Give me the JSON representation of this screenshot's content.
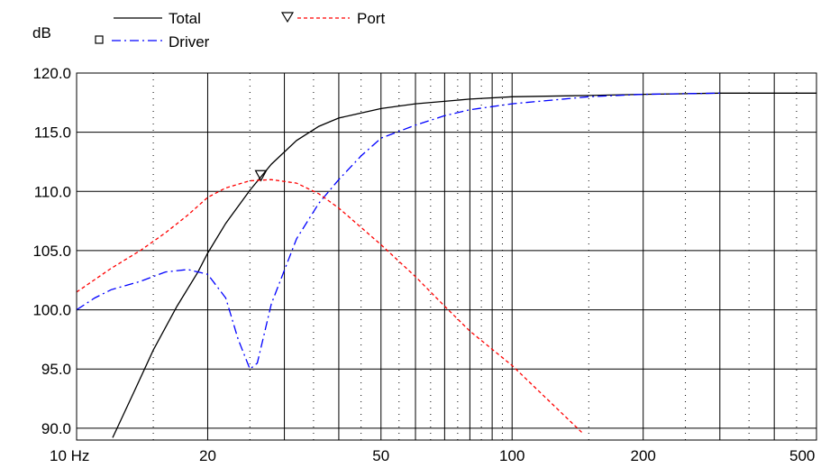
{
  "chart_data": {
    "type": "line",
    "ylabel": "dB",
    "x_scale": "log",
    "xlim": [
      10,
      500
    ],
    "ylim": [
      89,
      120
    ],
    "grid": true,
    "legend_placement": "top",
    "y_ticks": [
      {
        "value": 120,
        "label": "120.0"
      },
      {
        "value": 115,
        "label": "115.0"
      },
      {
        "value": 110,
        "label": "110.0"
      },
      {
        "value": 105,
        "label": "105.0"
      },
      {
        "value": 100,
        "label": "100.0"
      },
      {
        "value": 95,
        "label": "95.0"
      },
      {
        "value": 90,
        "label": "90.0"
      }
    ],
    "x_ticks": [
      {
        "value": 10,
        "label": "10 Hz"
      },
      {
        "value": 20,
        "label": "20"
      },
      {
        "value": 50,
        "label": "50"
      },
      {
        "value": 100,
        "label": "100"
      },
      {
        "value": 200,
        "label": "200"
      },
      {
        "value": 500,
        "label": "500"
      }
    ],
    "x_minor_solid": [
      30,
      40,
      60,
      70,
      80,
      90,
      300,
      400
    ],
    "x_minor_dotted": [
      15,
      25,
      35,
      45,
      55,
      65,
      75,
      85,
      95,
      150,
      250,
      350,
      450
    ],
    "y_minor_dotted": [],
    "series": [
      {
        "name": "Total",
        "color": "#000000",
        "dash": "solid",
        "marker": "triangle-down",
        "marker_at": [
          26.5,
          111.3
        ],
        "points": [
          [
            12.1,
            89.2
          ],
          [
            13.6,
            93.2
          ],
          [
            15,
            96.6
          ],
          [
            17,
            100.3
          ],
          [
            19,
            103.2
          ],
          [
            20,
            104.8
          ],
          [
            22,
            107.3
          ],
          [
            25,
            110.1
          ],
          [
            28,
            112.3
          ],
          [
            32,
            114.3
          ],
          [
            36,
            115.5
          ],
          [
            40,
            116.2
          ],
          [
            50,
            117.0
          ],
          [
            60,
            117.4
          ],
          [
            80,
            117.8
          ],
          [
            100,
            118.0
          ],
          [
            150,
            118.1
          ],
          [
            200,
            118.2
          ],
          [
            300,
            118.3
          ],
          [
            500,
            118.3
          ]
        ]
      },
      {
        "name": "Driver",
        "color": "#0000ff",
        "dash": "dashdot",
        "marker": "square",
        "points": [
          [
            10,
            100.0
          ],
          [
            11,
            101.0
          ],
          [
            12,
            101.7
          ],
          [
            14,
            102.4
          ],
          [
            16,
            103.2
          ],
          [
            18,
            103.4
          ],
          [
            20,
            103.0
          ],
          [
            22,
            101.0
          ],
          [
            23.5,
            97.5
          ],
          [
            25,
            95.0
          ],
          [
            26,
            95.5
          ],
          [
            28,
            100.5
          ],
          [
            32,
            106.0
          ],
          [
            36,
            109.0
          ],
          [
            40,
            111.0
          ],
          [
            45,
            113.0
          ],
          [
            50,
            114.5
          ],
          [
            60,
            115.6
          ],
          [
            70,
            116.4
          ],
          [
            80,
            116.9
          ],
          [
            100,
            117.4
          ],
          [
            150,
            118.0
          ],
          [
            200,
            118.2
          ],
          [
            300,
            118.3
          ]
        ]
      },
      {
        "name": "Port",
        "color": "#ff0000",
        "dash": "dashed",
        "marker": "triangle-down",
        "points": [
          [
            10,
            101.5
          ],
          [
            12,
            103.5
          ],
          [
            14,
            105.0
          ],
          [
            16,
            106.5
          ],
          [
            18,
            108.0
          ],
          [
            20,
            109.5
          ],
          [
            22,
            110.3
          ],
          [
            25,
            110.9
          ],
          [
            28,
            111.0
          ],
          [
            32,
            110.7
          ],
          [
            36,
            109.8
          ],
          [
            40,
            108.6
          ],
          [
            50,
            105.5
          ],
          [
            60,
            102.8
          ],
          [
            70,
            100.3
          ],
          [
            80,
            98.2
          ],
          [
            100,
            95.3
          ],
          [
            120,
            92.5
          ],
          [
            145,
            89.6
          ]
        ]
      }
    ]
  }
}
